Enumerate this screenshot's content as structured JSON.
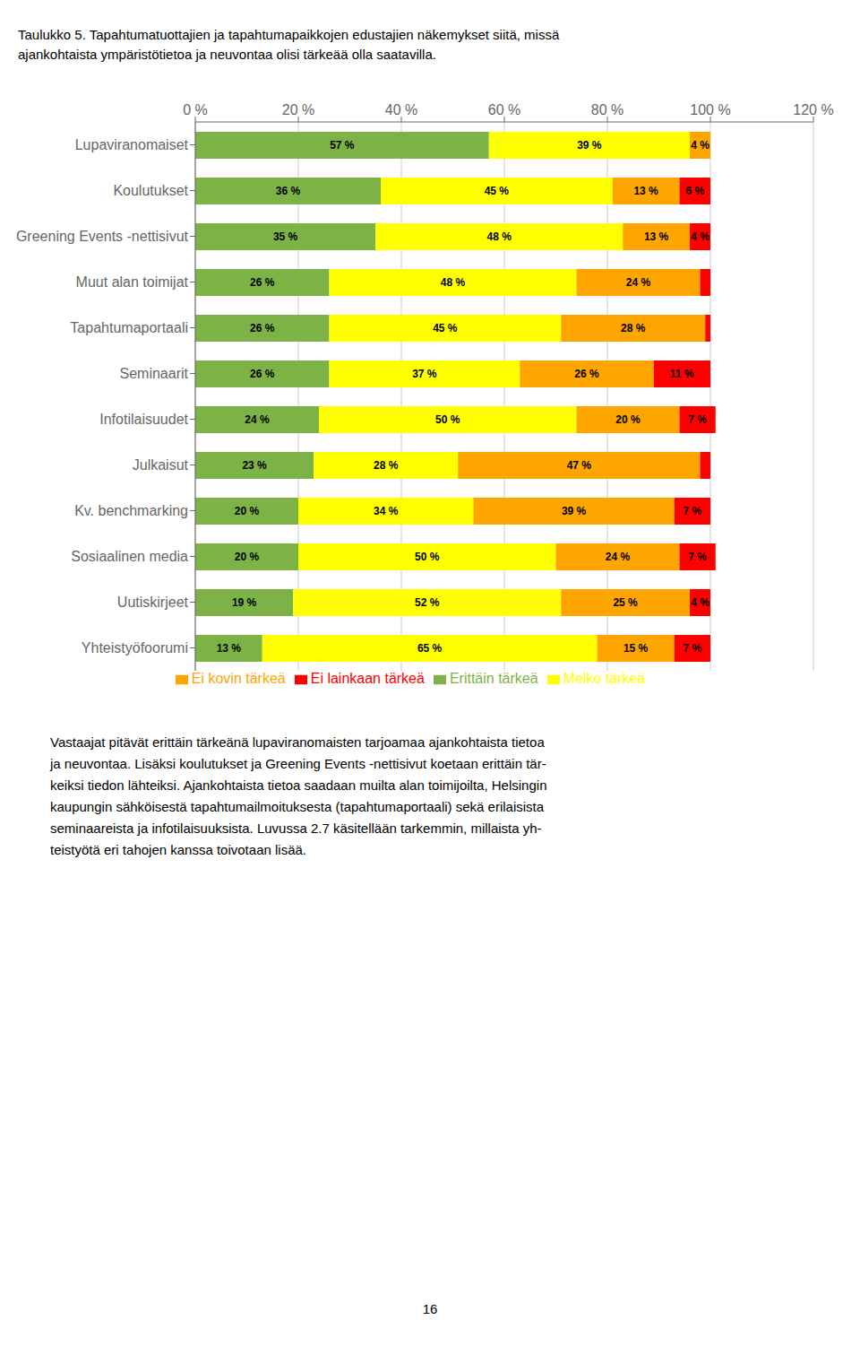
{
  "chart_data": {
    "type": "bar",
    "orientation": "horizontal",
    "stacked": true,
    "data_labels": true,
    "grid": true,
    "legend": "bottom",
    "title": "Taulukko 5. Tapahtumatuottajien ja tapahtumapaikkojen edustajien näkemykset siitä, missä",
    "subtitle": "ajankohtaista ympäristötietoa ja neuvontaa olisi tärkeää olla saatavilla.",
    "categories": [
      "Lupaviranomaiset",
      "Koulutukset",
      "Greening Events -nettisivut",
      "Muut alan toimijat",
      "Tapahtumaportaali",
      "Seminaarit",
      "Infotilaisuudet",
      "Julkaisut",
      "Kv. benchmarking",
      "Sosiaalinen media",
      "Uutiskirjeet",
      "Yhteistyöfoorumi"
    ],
    "series": [
      {
        "name": "Erittäin tärkeä",
        "color": "#7db346",
        "values": [
          57,
          36,
          35,
          26,
          26,
          26,
          24,
          23,
          20,
          20,
          19,
          13
        ],
        "value_labels": [
          "57 %",
          "36 %",
          "35 %",
          "26 %",
          "26 %",
          "26 %",
          "24 %",
          "23 %",
          "20 %",
          "20 %",
          "19 %",
          "13 %"
        ]
      },
      {
        "name": "Melko tärkeä",
        "color": "#ffff00",
        "values": [
          39,
          45,
          48,
          48,
          45,
          37,
          50,
          28,
          34,
          50,
          52,
          65
        ],
        "value_labels": [
          "39 %",
          "45 %",
          "48 %",
          "48 %",
          "45 %",
          "37 %",
          "50 %",
          "28 %",
          "34 %",
          "50 %",
          "52 %",
          "65 %"
        ]
      },
      {
        "name": "Ei kovin tärkeä",
        "color": "#ffa500",
        "values": [
          4,
          13,
          13,
          24,
          28,
          26,
          20,
          47,
          39,
          24,
          25,
          15
        ],
        "value_labels": [
          "4 %",
          "13 %",
          "13 %",
          "24 %",
          "28 %",
          "26 %",
          "20 %",
          "47 %",
          "39 %",
          "24 %",
          "25 %",
          "15 %"
        ]
      },
      {
        "name": "Ei lainkaan tärkeä",
        "color": "#ff0000",
        "values": [
          0,
          6,
          4,
          2,
          1,
          11,
          7,
          2,
          7,
          7,
          4,
          7
        ],
        "value_labels": [
          null,
          "6 %",
          "4 %",
          null,
          null,
          "11 %",
          "7 %",
          null,
          "7 %",
          "7 %",
          "4 %",
          "7 %"
        ]
      }
    ],
    "xlim": [
      0,
      120
    ],
    "xticks": [
      {
        "value": 0,
        "label": "0 %"
      },
      {
        "value": 20,
        "label": "20 %"
      },
      {
        "value": 40,
        "label": "40 %"
      },
      {
        "value": 60,
        "label": "60 %"
      },
      {
        "value": 80,
        "label": "80 %"
      },
      {
        "value": 100,
        "label": "100 %"
      },
      {
        "value": 120,
        "label": "120 %"
      }
    ],
    "annotations": [
      "Vastaajat pitävät erittäin tärkeänä lupaviranomaisten tarjoamaa ajankohtaista tietoa\nja neuvontaa. Lisäksi koulutukset ja Greening Events -nettisivut koetaan erittäin tär-\nkeiksi tiedon lähteiksi. Ajankohtaista tietoa saadaan muilta alan toimijoilta, Helsingin\nkaupungin sähköisestä tapahtumailmoituksesta (tapahtumaportaali) sekä erilaisista\nseminaareista ja infotilaisuuksista. Luvussa 2.7 käsitellään tarkemmin, millaista yh-\nteistyötä eri tahojen kanssa toivotaan lisää.",
      "16"
    ]
  }
}
